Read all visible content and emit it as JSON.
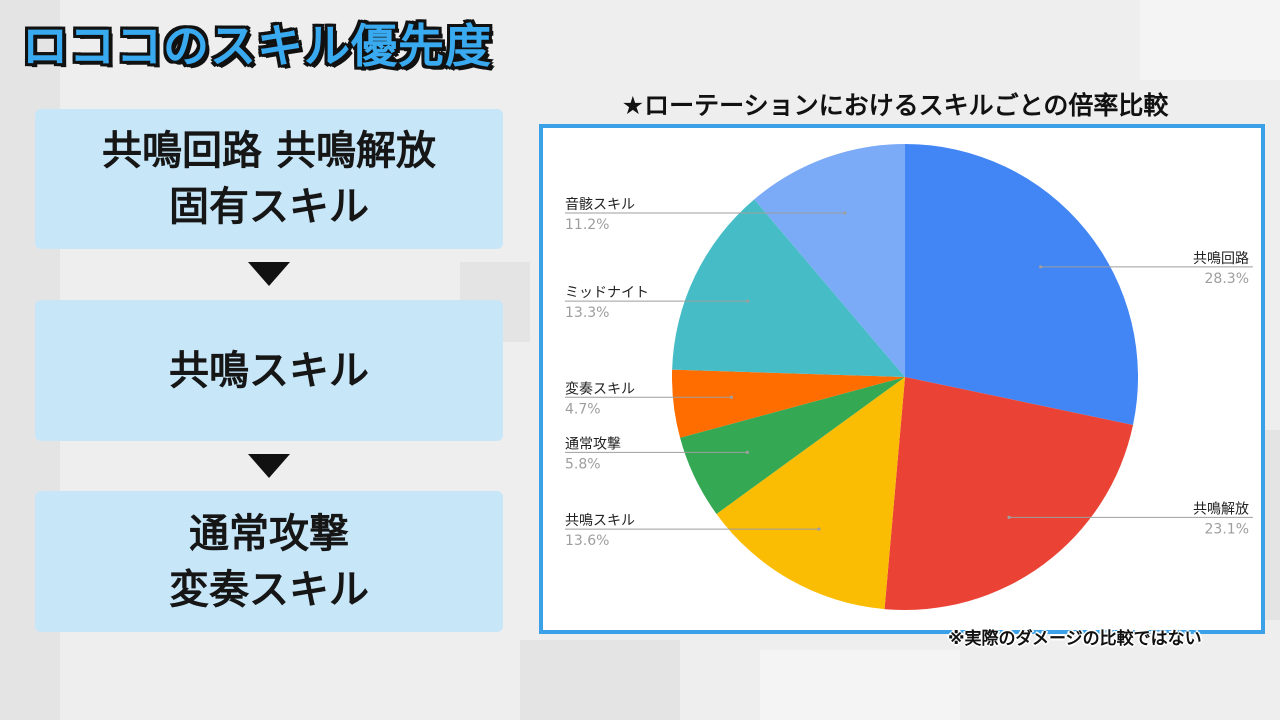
{
  "title": "ロココのスキル優先度",
  "priority": {
    "boxes": [
      {
        "lines": [
          "共鳴回路 共鳴解放",
          "固有スキル"
        ]
      },
      {
        "lines": [
          "共鳴スキル"
        ]
      },
      {
        "lines": [
          "通常攻撃",
          "変奏スキル"
        ]
      }
    ]
  },
  "chart_heading": "★ローテーションにおけるスキルごとの倍率比較",
  "footnote": "※実際のダメージの比較ではない",
  "chart_data": {
    "type": "pie",
    "unit": "%",
    "slices": [
      {
        "label": "共鳴回路",
        "value": 28.3,
        "pct_text": "28.3%",
        "color": "#4285f4"
      },
      {
        "label": "共鳴解放",
        "value": 23.1,
        "pct_text": "23.1%",
        "color": "#ea4335"
      },
      {
        "label": "共鳴スキル",
        "value": 13.6,
        "pct_text": "13.6%",
        "color": "#fbbc04"
      },
      {
        "label": "通常攻撃",
        "value": 5.8,
        "pct_text": "5.8%",
        "color": "#34a853"
      },
      {
        "label": "変奏スキル",
        "value": 4.7,
        "pct_text": "4.7%",
        "color": "#ff6d01"
      },
      {
        "label": "ミッドナイト",
        "value": 13.3,
        "pct_text": "13.3%",
        "color": "#46bdc6"
      },
      {
        "label": "音骸スキル",
        "value": 11.2,
        "pct_text": "11.2%",
        "color": "#7baaf7"
      }
    ]
  }
}
